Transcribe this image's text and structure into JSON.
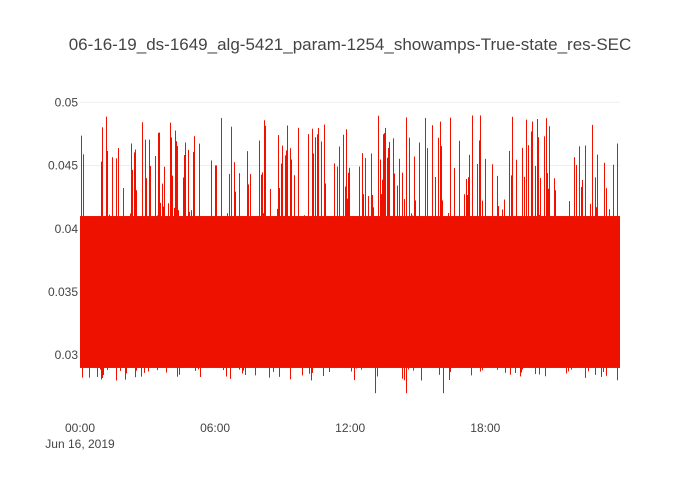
{
  "chart_data": {
    "type": "bar",
    "title": "06-16-19_ds-1649_alg-5421_param-1254_showamps-True-state_res-SEC",
    "xlabel": "",
    "ylabel": "",
    "x_start": "2019-06-16 00:00",
    "x_end": "2019-06-16 23:59",
    "x_ticks": [
      {
        "value": "2019-06-16 00:00",
        "label": "00:00",
        "sublabel": "Jun 16, 2019"
      },
      {
        "value": "2019-06-16 06:00",
        "label": "06:00",
        "sublabel": ""
      },
      {
        "value": "2019-06-16 12:00",
        "label": "12:00",
        "sublabel": ""
      },
      {
        "value": "2019-06-16 18:00",
        "label": "18:00",
        "sublabel": ""
      }
    ],
    "y_ticks": [
      {
        "value": 0.03,
        "label": "0.03"
      },
      {
        "value": 0.035,
        "label": "0.035"
      },
      {
        "value": 0.04,
        "label": "0.04"
      },
      {
        "value": 0.045,
        "label": "0.045"
      },
      {
        "value": 0.05,
        "label": "0.05"
      }
    ],
    "ylim": [
      0.0263,
      0.0505
    ],
    "grid": true,
    "bar_color": "#ee1100",
    "series": [
      {
        "value_range_approx": [
          0.027,
          0.049
        ],
        "typical_band": [
          0.029,
          0.041
        ]
      }
    ]
  }
}
